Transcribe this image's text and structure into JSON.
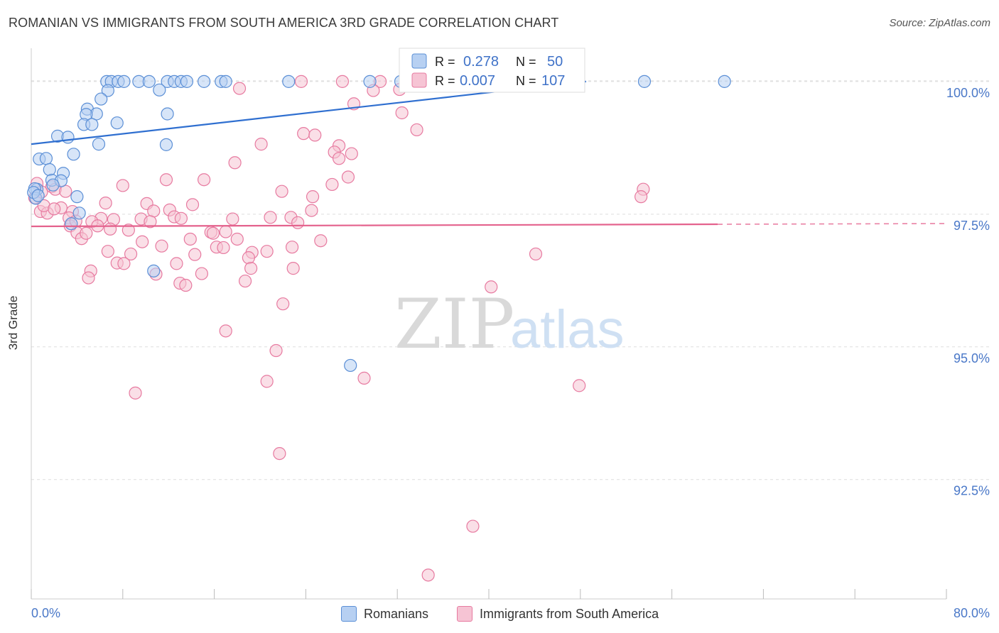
{
  "header": {
    "title": "ROMANIAN VS IMMIGRANTS FROM SOUTH AMERICA 3RD GRADE CORRELATION CHART",
    "source": "Source: ZipAtlas.com"
  },
  "watermark": {
    "zip": "ZIP",
    "atlas": "atlas"
  },
  "colors": {
    "blue": "#5b8fd6",
    "blue_fill": "#b7d0f2",
    "blue_line": "#2f6fd0",
    "pink": "#e77aa0",
    "pink_fill": "#f6c4d4",
    "pink_line": "#e4628d",
    "tick_text": "#4a78c8",
    "grid": "#dddddd"
  },
  "legend_stats": {
    "r_label": "R =",
    "n_label": "N =",
    "rows": [
      {
        "series": "Romanians",
        "r": "0.278",
        "n": "50"
      },
      {
        "series": "Immigrants from South America",
        "r": "0.007",
        "n": "107"
      }
    ]
  },
  "chart_data": {
    "type": "scatter",
    "title": "ROMANIAN VS IMMIGRANTS FROM SOUTH AMERICA 3RD GRADE CORRELATION CHART",
    "xlabel": "",
    "ylabel": "3rd Grade",
    "xlim": [
      0,
      80
    ],
    "ylim": [
      90.25,
      100.6
    ],
    "x_tick_labels": [
      "0.0%",
      "80.0%"
    ],
    "y_ticks": [
      {
        "value": 92.5,
        "label": "92.5%"
      },
      {
        "value": 95.0,
        "label": "95.0%"
      },
      {
        "value": 97.5,
        "label": "97.5%"
      },
      {
        "value": 100.0,
        "label": "100.0%"
      }
    ],
    "grid": true,
    "legend": "top-center inset; bottom",
    "series": [
      {
        "name": "Romanians",
        "color": "blue",
        "trend": {
          "x": [
            0,
            48.5
          ],
          "y": [
            98.82,
            100.0
          ],
          "dashed_to": 48.5
        },
        "points": [
          [
            6.6,
            100.0
          ],
          [
            7.0,
            100.0
          ],
          [
            7.6,
            100.0
          ],
          [
            8.1,
            100.0
          ],
          [
            9.4,
            100.0
          ],
          [
            10.3,
            100.0
          ],
          [
            11.9,
            100.0
          ],
          [
            12.5,
            100.0
          ],
          [
            13.1,
            100.0
          ],
          [
            13.6,
            100.0
          ],
          [
            15.1,
            100.0
          ],
          [
            16.6,
            100.0
          ],
          [
            17.0,
            100.0
          ],
          [
            22.5,
            100.0
          ],
          [
            29.6,
            100.0
          ],
          [
            32.3,
            100.0
          ],
          [
            53.6,
            100.0
          ],
          [
            60.6,
            100.0
          ],
          [
            6.7,
            99.83
          ],
          [
            11.2,
            99.84
          ],
          [
            6.1,
            99.67
          ],
          [
            4.9,
            99.48
          ],
          [
            5.7,
            99.39
          ],
          [
            4.8,
            99.38
          ],
          [
            11.9,
            99.39
          ],
          [
            4.6,
            99.19
          ],
          [
            5.3,
            99.19
          ],
          [
            7.5,
            99.22
          ],
          [
            2.3,
            98.97
          ],
          [
            3.2,
            98.95
          ],
          [
            5.9,
            98.82
          ],
          [
            11.8,
            98.81
          ],
          [
            3.7,
            98.63
          ],
          [
            0.7,
            98.54
          ],
          [
            1.3,
            98.55
          ],
          [
            1.6,
            98.34
          ],
          [
            2.8,
            98.27
          ],
          [
            1.8,
            98.14
          ],
          [
            2.6,
            98.13
          ],
          [
            0.5,
            97.97
          ],
          [
            1.9,
            98.05
          ],
          [
            0.3,
            97.98
          ],
          [
            0.4,
            97.8
          ],
          [
            4.0,
            97.83
          ],
          [
            4.2,
            97.52
          ],
          [
            3.5,
            97.32
          ],
          [
            10.7,
            96.43
          ],
          [
            27.9,
            94.65
          ],
          [
            0.2,
            97.91
          ],
          [
            0.6,
            97.85
          ]
        ]
      },
      {
        "name": "Immigrants from South America",
        "color": "pink",
        "trend": {
          "x": [
            0,
            60
          ],
          "y": [
            97.27,
            97.31
          ],
          "dashed_to": 80
        },
        "points": [
          [
            23.6,
            100.0
          ],
          [
            27.2,
            100.0
          ],
          [
            30.5,
            100.0
          ],
          [
            35.9,
            100.0
          ],
          [
            18.2,
            99.87
          ],
          [
            29.9,
            99.83
          ],
          [
            32.2,
            99.85
          ],
          [
            28.2,
            99.58
          ],
          [
            32.4,
            99.41
          ],
          [
            33.7,
            99.09
          ],
          [
            23.8,
            99.02
          ],
          [
            24.8,
            98.99
          ],
          [
            20.1,
            98.82
          ],
          [
            26.9,
            98.79
          ],
          [
            26.5,
            98.67
          ],
          [
            28.0,
            98.64
          ],
          [
            17.8,
            98.47
          ],
          [
            26.9,
            98.55
          ],
          [
            27.7,
            98.2
          ],
          [
            11.8,
            98.15
          ],
          [
            15.1,
            98.15
          ],
          [
            8.0,
            98.04
          ],
          [
            26.3,
            98.06
          ],
          [
            1.8,
            98.02
          ],
          [
            2.1,
            97.97
          ],
          [
            0.5,
            98.08
          ],
          [
            3.0,
            97.93
          ],
          [
            21.9,
            97.93
          ],
          [
            24.6,
            97.83
          ],
          [
            53.5,
            97.97
          ],
          [
            53.3,
            97.83
          ],
          [
            6.5,
            97.71
          ],
          [
            10.1,
            97.7
          ],
          [
            14.1,
            97.68
          ],
          [
            0.8,
            97.55
          ],
          [
            2.6,
            97.62
          ],
          [
            3.6,
            97.55
          ],
          [
            10.7,
            97.56
          ],
          [
            12.1,
            97.58
          ],
          [
            24.5,
            97.57
          ],
          [
            1.4,
            97.52
          ],
          [
            3.3,
            97.43
          ],
          [
            6.1,
            97.42
          ],
          [
            7.2,
            97.4
          ],
          [
            9.6,
            97.41
          ],
          [
            10.4,
            97.36
          ],
          [
            12.5,
            97.45
          ],
          [
            13.1,
            97.42
          ],
          [
            17.6,
            97.41
          ],
          [
            20.9,
            97.44
          ],
          [
            22.7,
            97.44
          ],
          [
            23.3,
            97.34
          ],
          [
            5.3,
            97.36
          ],
          [
            5.8,
            97.28
          ],
          [
            3.4,
            97.28
          ],
          [
            4.0,
            97.15
          ],
          [
            6.9,
            97.22
          ],
          [
            8.5,
            97.2
          ],
          [
            15.7,
            97.16
          ],
          [
            15.9,
            97.14
          ],
          [
            17.0,
            97.17
          ],
          [
            4.4,
            97.04
          ],
          [
            9.7,
            96.98
          ],
          [
            13.9,
            97.03
          ],
          [
            18.0,
            97.03
          ],
          [
            25.3,
            97.0
          ],
          [
            11.4,
            96.9
          ],
          [
            16.2,
            96.88
          ],
          [
            16.8,
            96.87
          ],
          [
            22.8,
            96.88
          ],
          [
            6.7,
            96.8
          ],
          [
            8.7,
            96.75
          ],
          [
            14.3,
            96.74
          ],
          [
            19.3,
            96.78
          ],
          [
            20.6,
            96.8
          ],
          [
            19.0,
            96.68
          ],
          [
            44.1,
            96.75
          ],
          [
            7.5,
            96.58
          ],
          [
            8.1,
            96.57
          ],
          [
            12.7,
            96.57
          ],
          [
            19.2,
            96.48
          ],
          [
            22.9,
            96.48
          ],
          [
            5.2,
            96.43
          ],
          [
            10.9,
            96.37
          ],
          [
            14.9,
            96.38
          ],
          [
            5.0,
            96.3
          ],
          [
            18.7,
            96.24
          ],
          [
            13.0,
            96.2
          ],
          [
            13.5,
            96.16
          ],
          [
            40.2,
            96.13
          ],
          [
            22.0,
            95.81
          ],
          [
            17.0,
            95.3
          ],
          [
            21.4,
            94.93
          ],
          [
            29.1,
            94.41
          ],
          [
            20.6,
            94.35
          ],
          [
            47.9,
            94.27
          ],
          [
            9.1,
            94.13
          ],
          [
            21.7,
            92.99
          ],
          [
            38.6,
            91.62
          ],
          [
            34.7,
            90.7
          ],
          [
            0.3,
            97.81
          ],
          [
            0.9,
            97.92
          ],
          [
            1.1,
            97.66
          ],
          [
            4.8,
            97.14
          ],
          [
            3.9,
            97.37
          ],
          [
            2.0,
            97.6
          ],
          [
            35.8,
            100.0
          ]
        ]
      }
    ]
  },
  "legend_bottom": {
    "items": [
      {
        "label": "Romanians",
        "color": "blue"
      },
      {
        "label": "Immigrants from South America",
        "color": "pink"
      }
    ]
  }
}
